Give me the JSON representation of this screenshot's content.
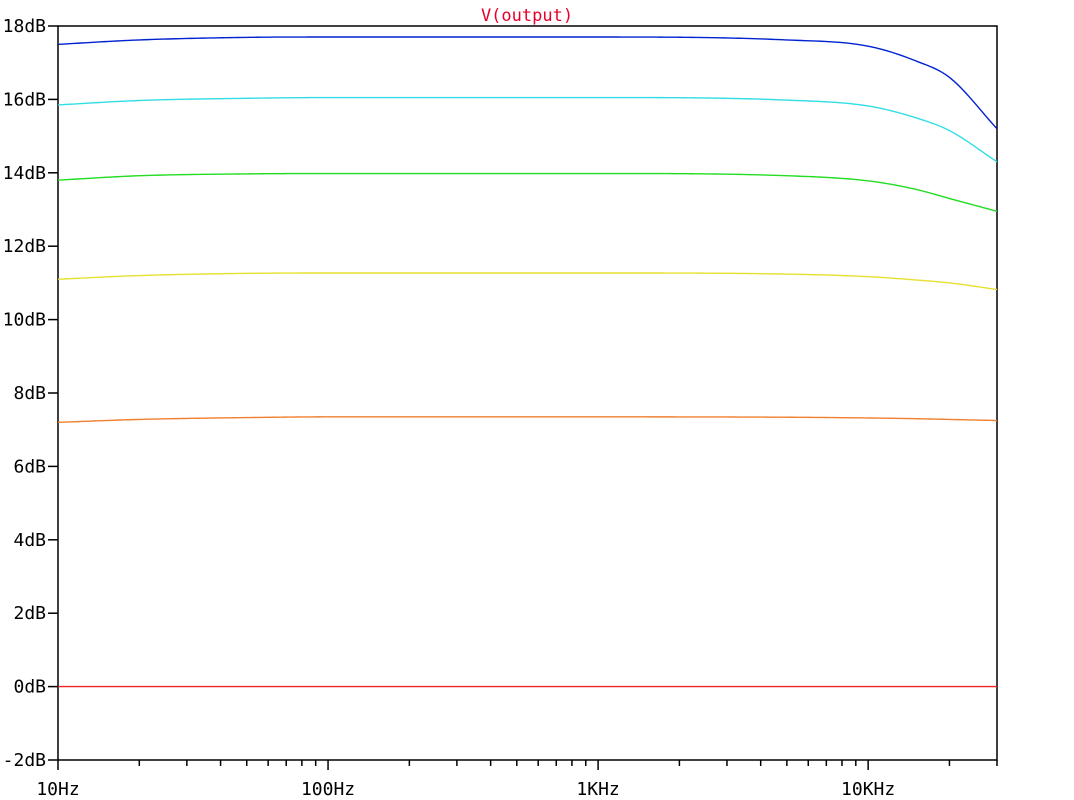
{
  "chart_data": {
    "type": "line",
    "title": "V(output)",
    "title_color": "#e8002a",
    "xscale": "log",
    "xlim": [
      10,
      30000
    ],
    "ylim": [
      -2,
      18
    ],
    "x_ticks": [
      {
        "value": 10,
        "label": "10Hz"
      },
      {
        "value": 100,
        "label": "100Hz"
      },
      {
        "value": 1000,
        "label": "1KHz"
      },
      {
        "value": 10000,
        "label": "10KHz"
      }
    ],
    "y_ticks": [
      {
        "value": 18,
        "label": "18dB"
      },
      {
        "value": 16,
        "label": "16dB"
      },
      {
        "value": 14,
        "label": "14dB"
      },
      {
        "value": 12,
        "label": "12dB"
      },
      {
        "value": 10,
        "label": "10dB"
      },
      {
        "value": 8,
        "label": "8dB"
      },
      {
        "value": 6,
        "label": "6dB"
      },
      {
        "value": 4,
        "label": "4dB"
      },
      {
        "value": 2,
        "label": "2dB"
      },
      {
        "value": 0,
        "label": "0dB"
      },
      {
        "value": -2,
        "label": "-2dB"
      }
    ],
    "grid": false,
    "x": [
      10,
      20,
      50,
      100,
      1000,
      5000,
      10000,
      15000,
      20000,
      30000
    ],
    "series": [
      {
        "color": "#0022d0",
        "values": [
          17.5,
          17.62,
          17.69,
          17.7,
          17.7,
          17.62,
          17.45,
          17.05,
          16.6,
          15.2
        ]
      },
      {
        "color": "#33dde6",
        "values": [
          15.85,
          15.97,
          16.03,
          16.05,
          16.05,
          15.98,
          15.82,
          15.5,
          15.15,
          14.3
        ]
      },
      {
        "color": "#22dd22",
        "values": [
          13.8,
          13.92,
          13.97,
          13.98,
          13.98,
          13.92,
          13.78,
          13.55,
          13.3,
          12.95
        ]
      },
      {
        "color": "#e6e030",
        "values": [
          11.1,
          11.2,
          11.26,
          11.27,
          11.27,
          11.24,
          11.17,
          11.08,
          11.0,
          10.82
        ]
      },
      {
        "color": "#f08030",
        "values": [
          7.2,
          7.28,
          7.33,
          7.35,
          7.35,
          7.34,
          7.32,
          7.3,
          7.28,
          7.25
        ]
      },
      {
        "color": "#ee2222",
        "values": [
          0,
          0,
          0,
          0,
          0,
          0,
          0,
          0,
          0,
          0
        ]
      }
    ]
  }
}
